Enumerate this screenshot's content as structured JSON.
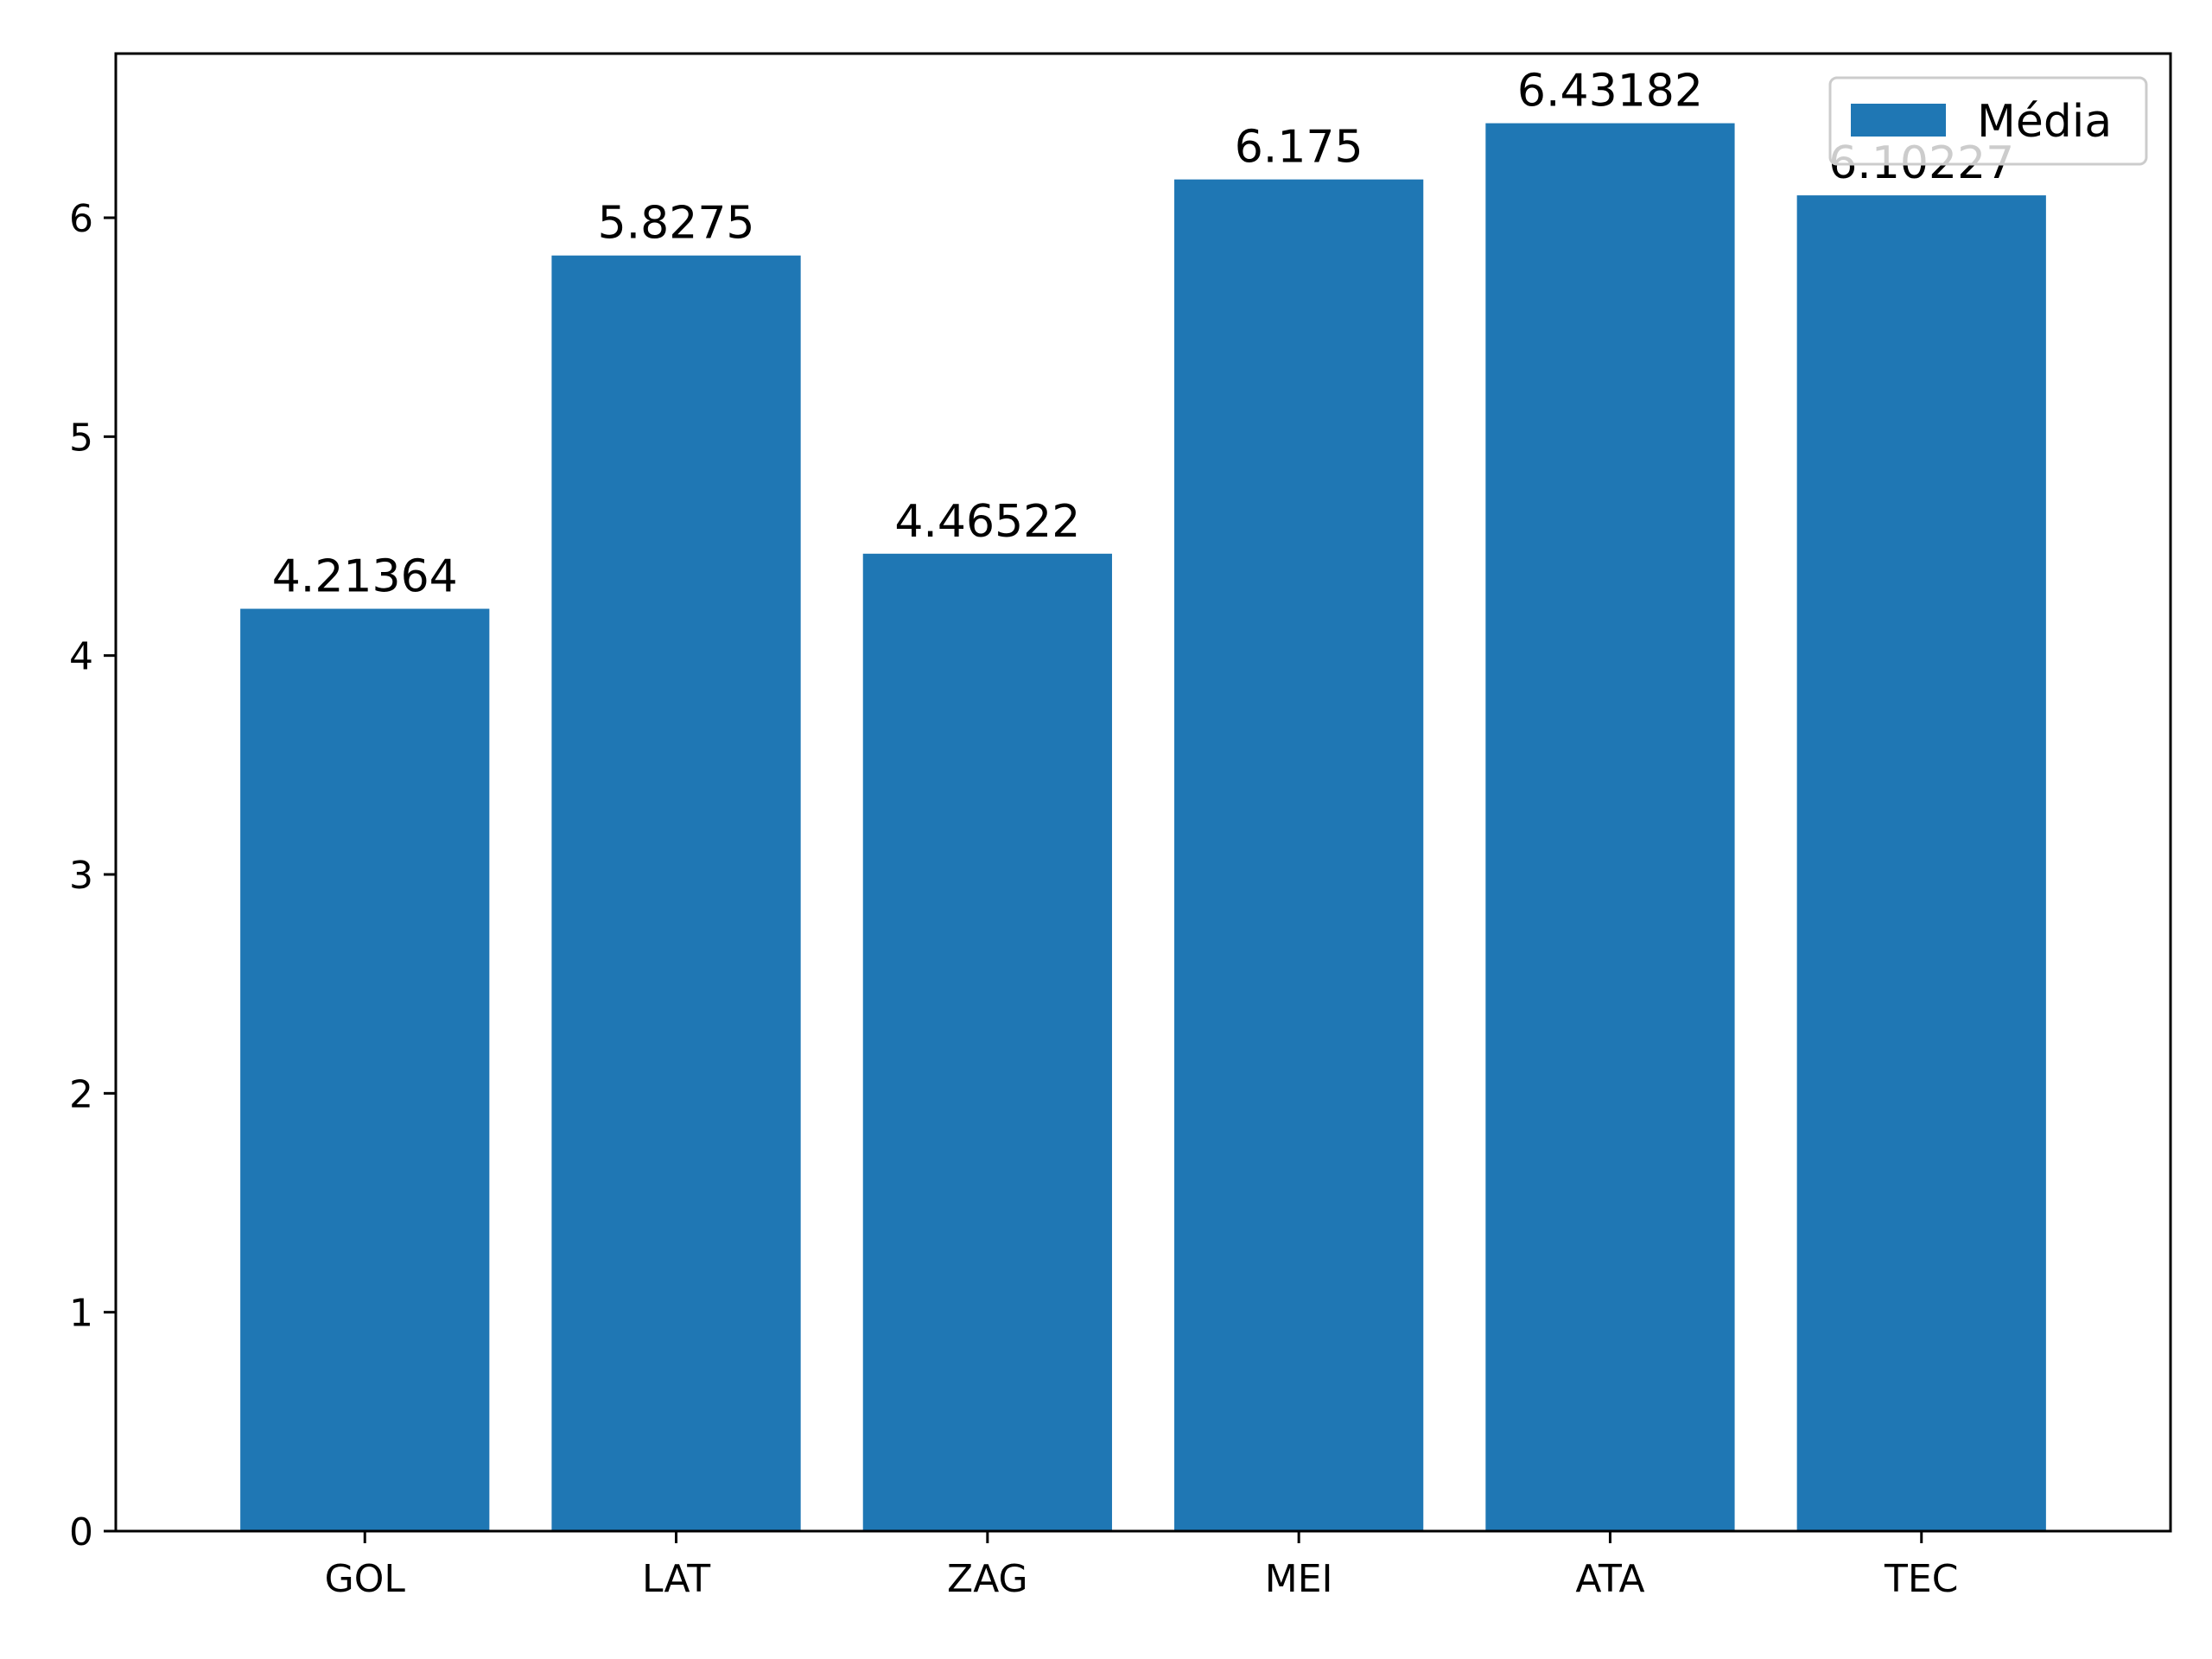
{
  "chart_data": {
    "type": "bar",
    "categories": [
      "GOL",
      "LAT",
      "ZAG",
      "MEI",
      "ATA",
      "TEC"
    ],
    "series": [
      {
        "name": "Média",
        "values": [
          4.21364,
          5.8275,
          4.46522,
          6.175,
          6.43182,
          6.10227
        ],
        "labels": [
          "4.21364",
          "5.8275",
          "4.46522",
          "6.175",
          "6.43182",
          "6.10227"
        ],
        "color": "#1f77b4"
      }
    ],
    "title": "",
    "xlabel": "",
    "ylabel": "",
    "ylim": [
      0,
      6.75
    ],
    "yticks": [
      0,
      1,
      2,
      3,
      4,
      5,
      6
    ],
    "ytick_labels": [
      "0",
      "1",
      "2",
      "3",
      "4",
      "5",
      "6"
    ],
    "grid": false,
    "legend": {
      "placement": "top-right",
      "entries": [
        "Média"
      ]
    }
  }
}
